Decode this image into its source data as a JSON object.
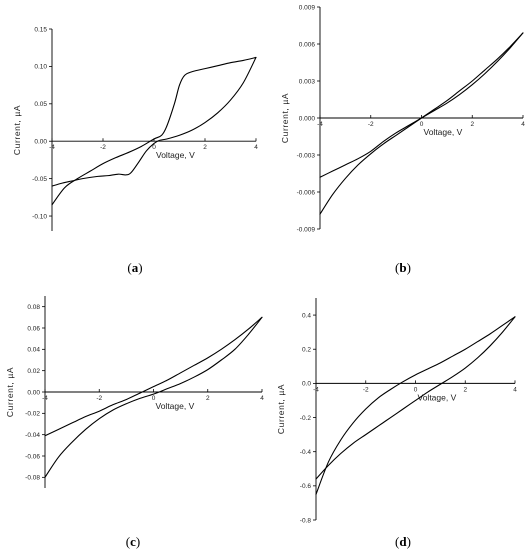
{
  "chart_data": [
    {
      "type": "line",
      "panel_label": "a",
      "xlabel": "Voltage, V",
      "ylabel": "Current, µA",
      "xlim": [
        -4,
        4
      ],
      "ylim": [
        -0.12,
        0.15
      ],
      "x_ticks": [
        -4,
        -2,
        0,
        2,
        4
      ],
      "x_tick_labels": [
        "-4",
        "-2",
        "0",
        "2",
        "4"
      ],
      "y_ticks": [
        -0.1,
        -0.05,
        0.0,
        0.05,
        0.1,
        0.15
      ],
      "y_tick_labels": [
        "-0.10",
        "-0.05",
        "0.00",
        "0.05",
        "0.10",
        "0.15"
      ],
      "grid": false,
      "series": [
        {
          "x": [
            -4,
            -3.5,
            -3,
            -2.5,
            -2,
            -1.5,
            -1,
            -0.5,
            0,
            0.3,
            0.5,
            0.8,
            1.0,
            1.2,
            1.5,
            2,
            2.5,
            3,
            3.5,
            4
          ],
          "y": [
            -0.085,
            -0.062,
            -0.05,
            -0.04,
            -0.03,
            -0.022,
            -0.015,
            -0.007,
            0.003,
            0.008,
            0.02,
            0.05,
            0.075,
            0.088,
            0.093,
            0.097,
            0.101,
            0.105,
            0.108,
            0.112
          ]
        },
        {
          "x": [
            4,
            3.5,
            3,
            2.5,
            2,
            1.5,
            1,
            0.5,
            0.2,
            0,
            -0.3,
            -0.6,
            -0.9,
            -1.1,
            -1.4,
            -1.8,
            -2.2,
            -2.8,
            -3.2,
            -3.6,
            -4
          ],
          "y": [
            0.112,
            0.078,
            0.055,
            0.038,
            0.025,
            0.015,
            0.008,
            0.003,
            0.001,
            -0.003,
            -0.013,
            -0.028,
            -0.042,
            -0.045,
            -0.044,
            -0.046,
            -0.047,
            -0.05,
            -0.053,
            -0.056,
            -0.06
          ]
        }
      ]
    },
    {
      "type": "line",
      "panel_label": "b",
      "xlabel": "Voltage, V",
      "ylabel": "Current, µA",
      "xlim": [
        -4,
        4
      ],
      "ylim": [
        -0.009,
        0.009
      ],
      "x_ticks": [
        -4,
        -2,
        0,
        2,
        4
      ],
      "x_tick_labels": [
        "-4",
        "-2",
        "0",
        "2",
        "4"
      ],
      "y_ticks": [
        -0.009,
        -0.006,
        -0.003,
        0.0,
        0.003,
        0.006,
        0.009
      ],
      "y_tick_labels": [
        "-0.009",
        "-0.006",
        "-0.003",
        "0.000",
        "0.003",
        "0.006",
        "0.009"
      ],
      "grid": false,
      "series": [
        {
          "x": [
            -4,
            -3.5,
            -3,
            -2.5,
            -2,
            -1.5,
            -1,
            -0.5,
            0,
            0.5,
            1,
            1.5,
            2,
            2.5,
            3,
            3.5,
            4
          ],
          "y": [
            -0.0078,
            -0.0062,
            -0.0049,
            -0.0038,
            -0.0029,
            -0.0021,
            -0.0014,
            -0.0007,
            0.0,
            0.0007,
            0.0014,
            0.0022,
            0.003,
            0.0039,
            0.0048,
            0.0058,
            0.0069
          ]
        },
        {
          "x": [
            4,
            3.5,
            3,
            2.5,
            2,
            1.5,
            1,
            0.5,
            0,
            -0.5,
            -1,
            -1.5,
            -2,
            -2.5,
            -3,
            -3.5,
            -4
          ],
          "y": [
            0.0069,
            0.0057,
            0.0046,
            0.0036,
            0.0027,
            0.0019,
            0.0012,
            0.0006,
            0.0,
            -0.0006,
            -0.0012,
            -0.0019,
            -0.0027,
            -0.0033,
            -0.0038,
            -0.0043,
            -0.0048
          ]
        }
      ]
    },
    {
      "type": "line",
      "panel_label": "c",
      "xlabel": "Voltage, V",
      "ylabel": "Current, µA",
      "xlim": [
        -4,
        4
      ],
      "ylim": [
        -0.09,
        0.09
      ],
      "x_ticks": [
        -4,
        -2,
        0,
        2,
        4
      ],
      "x_tick_labels": [
        "-4",
        "-2",
        "0",
        "2",
        "4"
      ],
      "y_ticks": [
        -0.08,
        -0.06,
        -0.04,
        -0.02,
        0.0,
        0.02,
        0.04,
        0.06,
        0.08
      ],
      "y_tick_labels": [
        "-0.08",
        "-0.06",
        "-0.04",
        "-0.02",
        "0.00",
        "0.02",
        "0.04",
        "0.06",
        "0.08"
      ],
      "grid": false,
      "series": [
        {
          "x": [
            -4,
            -3.5,
            -3,
            -2.5,
            -2,
            -1.5,
            -1,
            -0.5,
            0,
            0.5,
            1,
            1.5,
            2,
            2.5,
            3,
            3.5,
            4
          ],
          "y": [
            -0.08,
            -0.061,
            -0.047,
            -0.035,
            -0.025,
            -0.017,
            -0.011,
            -0.006,
            -0.002,
            0.003,
            0.008,
            0.014,
            0.021,
            0.03,
            0.04,
            0.054,
            0.07
          ]
        },
        {
          "x": [
            4,
            3.5,
            3,
            2.5,
            2,
            1.5,
            1,
            0.5,
            0,
            -0.5,
            -1,
            -1.5,
            -2,
            -2.5,
            -3,
            -3.5,
            -4
          ],
          "y": [
            0.07,
            0.059,
            0.049,
            0.04,
            0.032,
            0.025,
            0.018,
            0.011,
            0.005,
            -0.001,
            -0.007,
            -0.012,
            -0.018,
            -0.023,
            -0.029,
            -0.035,
            -0.041
          ]
        }
      ]
    },
    {
      "type": "line",
      "panel_label": "d",
      "xlabel": "Voltage, V",
      "ylabel": "Current, µA",
      "xlim": [
        -4,
        4
      ],
      "ylim": [
        -0.8,
        0.5
      ],
      "x_ticks": [
        -4,
        -2,
        0,
        2,
        4
      ],
      "x_tick_labels": [
        "-4",
        "-2",
        "0",
        "2",
        "4"
      ],
      "y_ticks": [
        -0.8,
        -0.6,
        -0.4,
        -0.2,
        0.0,
        0.2,
        0.4
      ],
      "y_tick_labels": [
        "-0.8",
        "-0.6",
        "-0.4",
        "-0.2",
        "0.0",
        "0.2",
        "0.4"
      ],
      "grid": false,
      "series": [
        {
          "x": [
            -4,
            -3.5,
            -3,
            -2.5,
            -2,
            -1.5,
            -1,
            -0.5,
            0,
            0.5,
            1,
            1.5,
            2,
            2.5,
            3,
            3.5,
            4
          ],
          "y": [
            -0.65,
            -0.46,
            -0.33,
            -0.23,
            -0.15,
            -0.085,
            -0.035,
            0.01,
            0.05,
            0.085,
            0.12,
            0.16,
            0.2,
            0.245,
            0.29,
            0.34,
            0.39
          ]
        },
        {
          "x": [
            4,
            3.5,
            3,
            2.5,
            2,
            1.5,
            1,
            0.5,
            0,
            -0.5,
            -1,
            -1.5,
            -2,
            -2.5,
            -3,
            -3.5,
            -4
          ],
          "y": [
            0.39,
            0.3,
            0.22,
            0.15,
            0.09,
            0.04,
            -0.005,
            -0.05,
            -0.1,
            -0.15,
            -0.2,
            -0.25,
            -0.3,
            -0.35,
            -0.41,
            -0.48,
            -0.56
          ]
        }
      ]
    }
  ]
}
